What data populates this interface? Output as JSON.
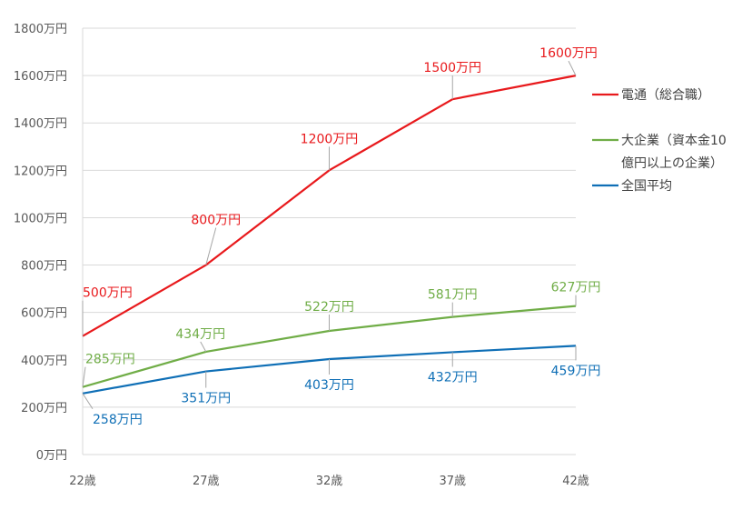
{
  "chart_data": {
    "type": "line",
    "categories": [
      "22歳",
      "27歳",
      "32歳",
      "37歳",
      "42歳"
    ],
    "ylim": [
      0,
      1800
    ],
    "ytick_step": 200,
    "ytick_labels": [
      "0万円",
      "200万円",
      "400万円",
      "600万円",
      "800万円",
      "1000万円",
      "1200万円",
      "1400万円",
      "1600万円",
      "1800万円"
    ],
    "grid": true,
    "legend_position": "right",
    "series": [
      {
        "name_lines": [
          "電通（総合職）"
        ],
        "color": "#e8191c",
        "values": [
          500,
          800,
          1200,
          1500,
          1600
        ],
        "labels": [
          "500万円",
          "800万円",
          "1200万円",
          "1500万円",
          "1600万円"
        ]
      },
      {
        "name_lines": [
          "大企業（資本金10",
          "億円以上の企業）"
        ],
        "color": "#70ad47",
        "values": [
          285,
          434,
          522,
          581,
          627
        ],
        "labels": [
          "285万円",
          "434万円",
          "522万円",
          "581万円",
          "627万円"
        ]
      },
      {
        "name_lines": [
          "全国平均"
        ],
        "color": "#0f6fb6",
        "values": [
          258,
          351,
          403,
          432,
          459
        ],
        "labels": [
          "258万円",
          "351万円",
          "403万円",
          "432万円",
          "459万円"
        ]
      }
    ]
  }
}
